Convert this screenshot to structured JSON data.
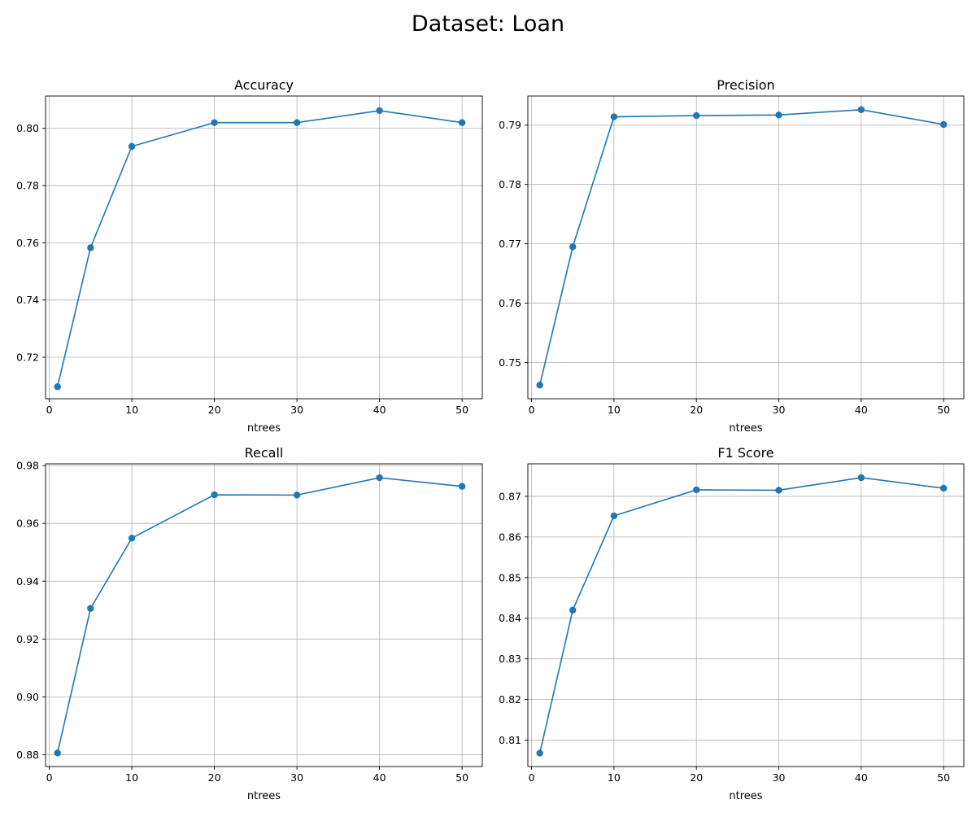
{
  "figure": {
    "suptitle": "Dataset: Loan"
  },
  "colors": {
    "line": "#1f77b4",
    "grid": "#b0b0b0",
    "axis": "#000000"
  },
  "chart_data": [
    {
      "type": "line",
      "title": "Accuracy",
      "xlabel": "ntrees",
      "ylabel": "",
      "x": [
        1,
        5,
        10,
        20,
        30,
        40,
        50
      ],
      "series": [
        {
          "values": [
            0.7097,
            0.7583,
            0.7937,
            0.802,
            0.802,
            0.8062,
            0.802
          ]
        }
      ],
      "xlim": [
        -0.45,
        52.45
      ],
      "ylim": [
        0.7055,
        0.8113
      ],
      "xticks": [
        0,
        10,
        20,
        30,
        40,
        50
      ],
      "yticks": [
        0.72,
        0.74,
        0.76,
        0.78,
        0.8
      ],
      "ytick_labels": [
        "0.72",
        "0.74",
        "0.76",
        "0.78",
        "0.80"
      ],
      "marker": "circle",
      "grid": true
    },
    {
      "type": "line",
      "title": "Precision",
      "xlabel": "ntrees",
      "ylabel": "",
      "x": [
        1,
        5,
        10,
        20,
        30,
        40,
        50
      ],
      "series": [
        {
          "values": [
            0.7462,
            0.7695,
            0.7914,
            0.7916,
            0.7917,
            0.7926,
            0.7901
          ]
        }
      ],
      "xlim": [
        -0.45,
        52.45
      ],
      "ylim": [
        0.7439,
        0.7949
      ],
      "xticks": [
        0,
        10,
        20,
        30,
        40,
        50
      ],
      "yticks": [
        0.75,
        0.76,
        0.77,
        0.78,
        0.79
      ],
      "ytick_labels": [
        "0.75",
        "0.76",
        "0.77",
        "0.78",
        "0.79"
      ],
      "marker": "circle",
      "grid": true
    },
    {
      "type": "line",
      "title": "Recall",
      "xlabel": "ntrees",
      "ylabel": "",
      "x": [
        1,
        5,
        10,
        20,
        30,
        40,
        50
      ],
      "series": [
        {
          "values": [
            0.8806,
            0.9306,
            0.9549,
            0.9699,
            0.9698,
            0.9758,
            0.9728
          ]
        }
      ],
      "xlim": [
        -0.45,
        52.45
      ],
      "ylim": [
        0.8759,
        0.9806
      ],
      "xticks": [
        0,
        10,
        20,
        30,
        40,
        50
      ],
      "yticks": [
        0.88,
        0.9,
        0.92,
        0.94,
        0.96,
        0.98
      ],
      "ytick_labels": [
        "0.88",
        "0.90",
        "0.92",
        "0.94",
        "0.96",
        "0.98"
      ],
      "marker": "circle",
      "grid": true
    },
    {
      "type": "line",
      "title": "F1 Score",
      "xlabel": "ntrees",
      "ylabel": "",
      "x": [
        1,
        5,
        10,
        20,
        30,
        40,
        50
      ],
      "series": [
        {
          "values": [
            0.8068,
            0.842,
            0.8652,
            0.8716,
            0.8715,
            0.8746,
            0.872
          ]
        }
      ],
      "xlim": [
        -0.45,
        52.45
      ],
      "ylim": [
        0.8035,
        0.878
      ],
      "xticks": [
        0,
        10,
        20,
        30,
        40,
        50
      ],
      "yticks": [
        0.81,
        0.82,
        0.83,
        0.84,
        0.85,
        0.86,
        0.87
      ],
      "ytick_labels": [
        "0.81",
        "0.82",
        "0.83",
        "0.84",
        "0.85",
        "0.86",
        "0.87"
      ],
      "marker": "circle",
      "grid": true
    }
  ]
}
